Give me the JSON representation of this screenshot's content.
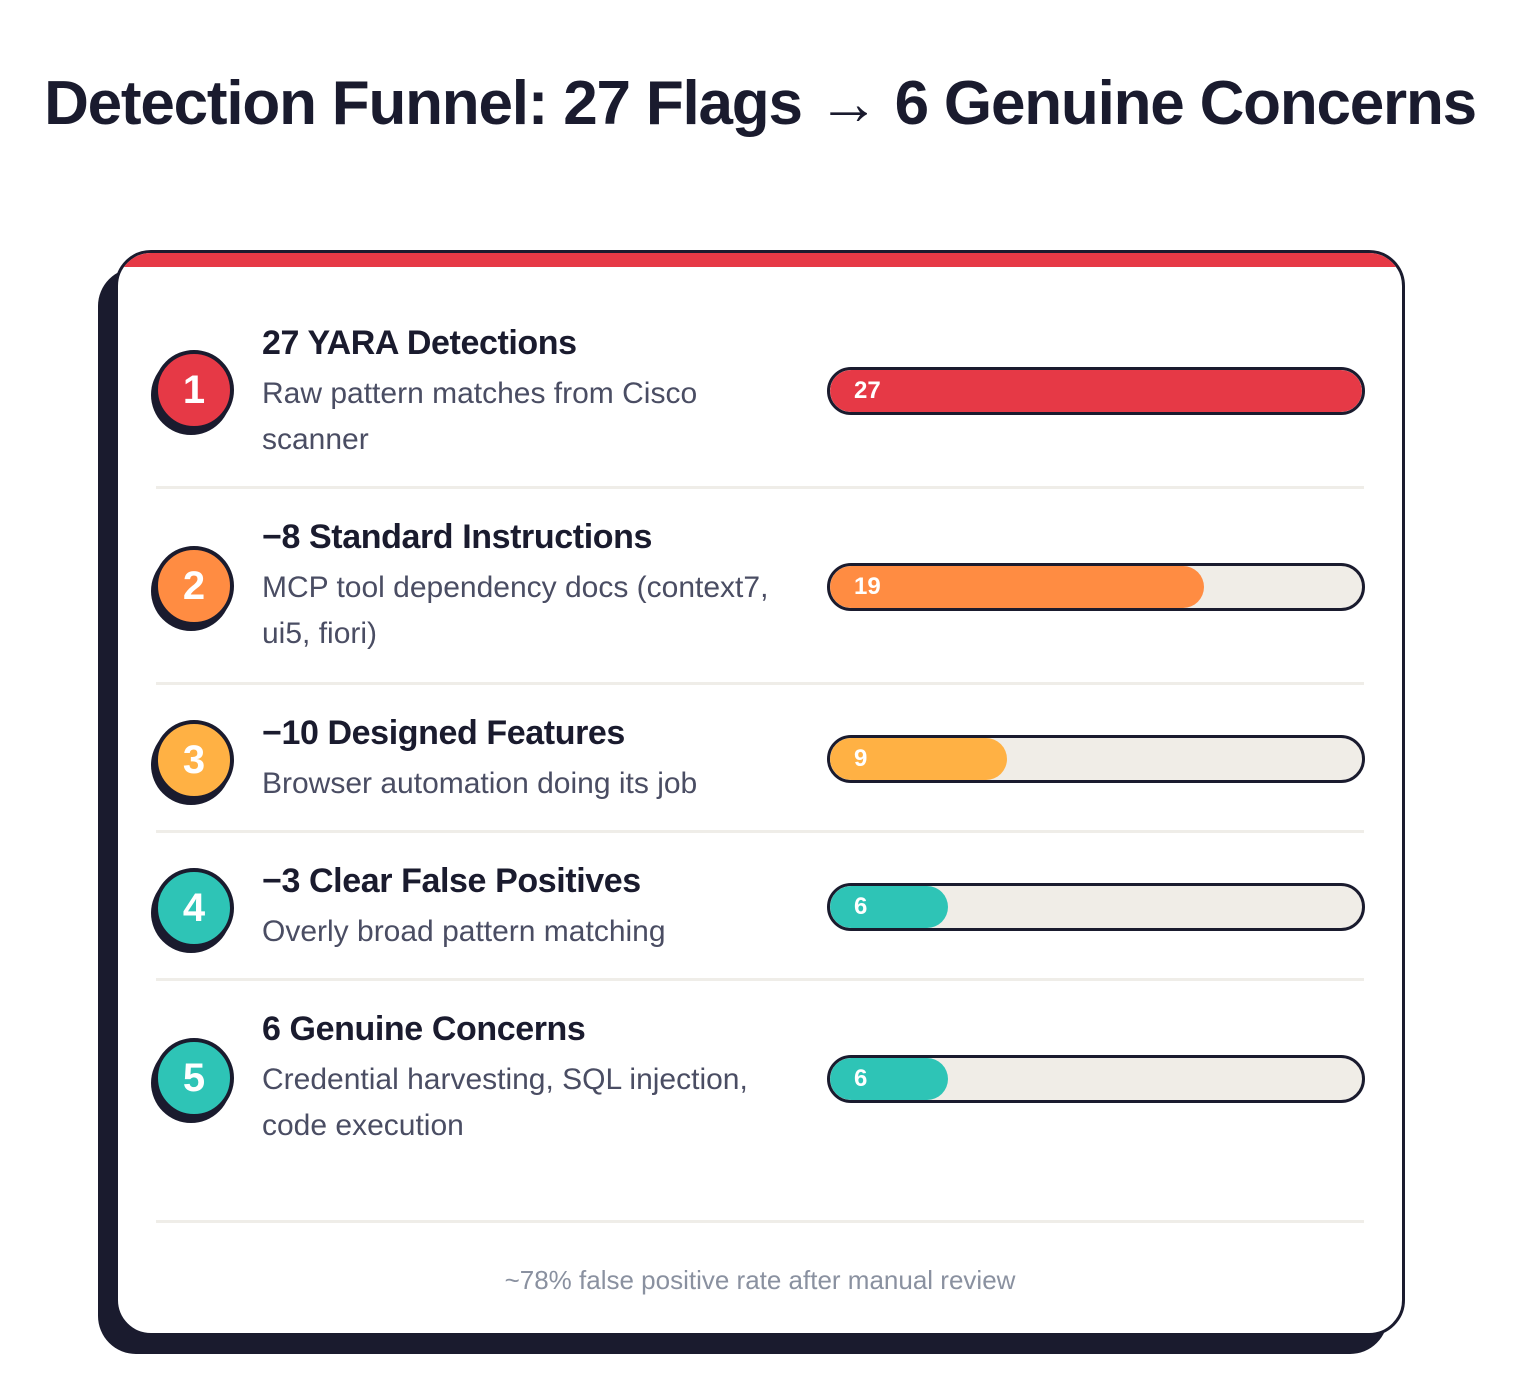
{
  "title": "Detection Funnel: 27 Flags → 6 Genuine Concerns",
  "chart_data": {
    "type": "bar",
    "max": 27,
    "categories": [
      "27 YARA Detections",
      "−8 Standard Instructions",
      "−10 Designed Features",
      "−3 Clear False Positives",
      "6 Genuine Concerns"
    ],
    "values": [
      27,
      19,
      9,
      6,
      6
    ],
    "stages": [
      {
        "number": "1",
        "title": "27 YARA Detections",
        "description": "Raw pattern matches from Cisco scanner",
        "value": 27,
        "color": "#e63946"
      },
      {
        "number": "2",
        "title": "−8 Standard Instructions",
        "description": "MCP tool dependency docs (context7, ui5, fiori)",
        "value": 19,
        "color": "#ff8c42"
      },
      {
        "number": "3",
        "title": "−10 Designed Features",
        "description": "Browser automation doing its job",
        "value": 9,
        "color": "#ffb144"
      },
      {
        "number": "4",
        "title": "−3 Clear False Positives",
        "description": "Overly broad pattern matching",
        "value": 6,
        "color": "#2ec4b6"
      },
      {
        "number": "5",
        "title": "6 Genuine Concerns",
        "description": "Credential harvesting, SQL injection, code execution",
        "value": 6,
        "color": "#2ec4b6"
      }
    ]
  },
  "footer": "~78% false positive rate after manual review",
  "colors": {
    "ink": "#1a1b2e",
    "accent": "#e63946",
    "track": "#f0ede7",
    "muted": "#8a91a0"
  }
}
